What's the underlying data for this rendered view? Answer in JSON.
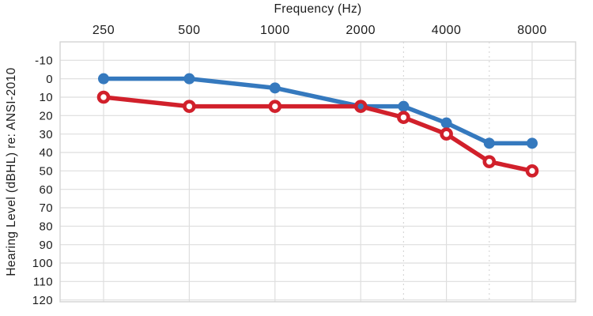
{
  "page": {
    "description": "Audiogram line chart showing hearing thresholds by frequency for two measurement series"
  },
  "chart_data": {
    "type": "line",
    "title": "",
    "xlabel": "Frequency (Hz)",
    "ylabel": "Hearing Level (dBHL) re: ANSI-2010",
    "x_axis_position": "top",
    "y_axis_inverted": true,
    "x_scale": "octave",
    "x": [
      250,
      500,
      1000,
      2000,
      3000,
      4000,
      6000,
      8000
    ],
    "x_tick_values": [
      250,
      500,
      1000,
      2000,
      4000,
      8000
    ],
    "x_tick_labels": [
      "250",
      "500",
      "1000",
      "2000",
      "4000",
      "8000"
    ],
    "x_dashed_gridline_values": [
      3000,
      6000
    ],
    "y_ticks": [
      -10,
      0,
      10,
      20,
      30,
      40,
      50,
      60,
      70,
      80,
      90,
      100,
      110,
      120
    ],
    "y_tick_labels": [
      "-10",
      "0",
      "10",
      "20",
      "30",
      "40",
      "50",
      "60",
      "70",
      "80",
      "90",
      "100",
      "110",
      "120"
    ],
    "ylim": [
      -20,
      121
    ],
    "grid": true,
    "legend": "none",
    "series": [
      {
        "name": "blue-series",
        "marker": "filled-circle",
        "color": "#3579BE",
        "values": [
          0,
          0,
          5,
          15,
          15,
          24,
          35,
          35
        ]
      },
      {
        "name": "red-series",
        "marker": "open-circle",
        "color": "#D1202B",
        "values": [
          10,
          15,
          15,
          15,
          21,
          30,
          45,
          50
        ]
      }
    ]
  },
  "colors": {
    "background": "#FFFFFF",
    "grid": "#DEDEDE",
    "dashed_grid": "#D8D8D8",
    "plot_border": "#D4D4D4",
    "text": "#1C1C1C",
    "series_blue": "#3579BE",
    "series_red": "#D1202B",
    "open_marker_hole": "#FFFFFF"
  }
}
